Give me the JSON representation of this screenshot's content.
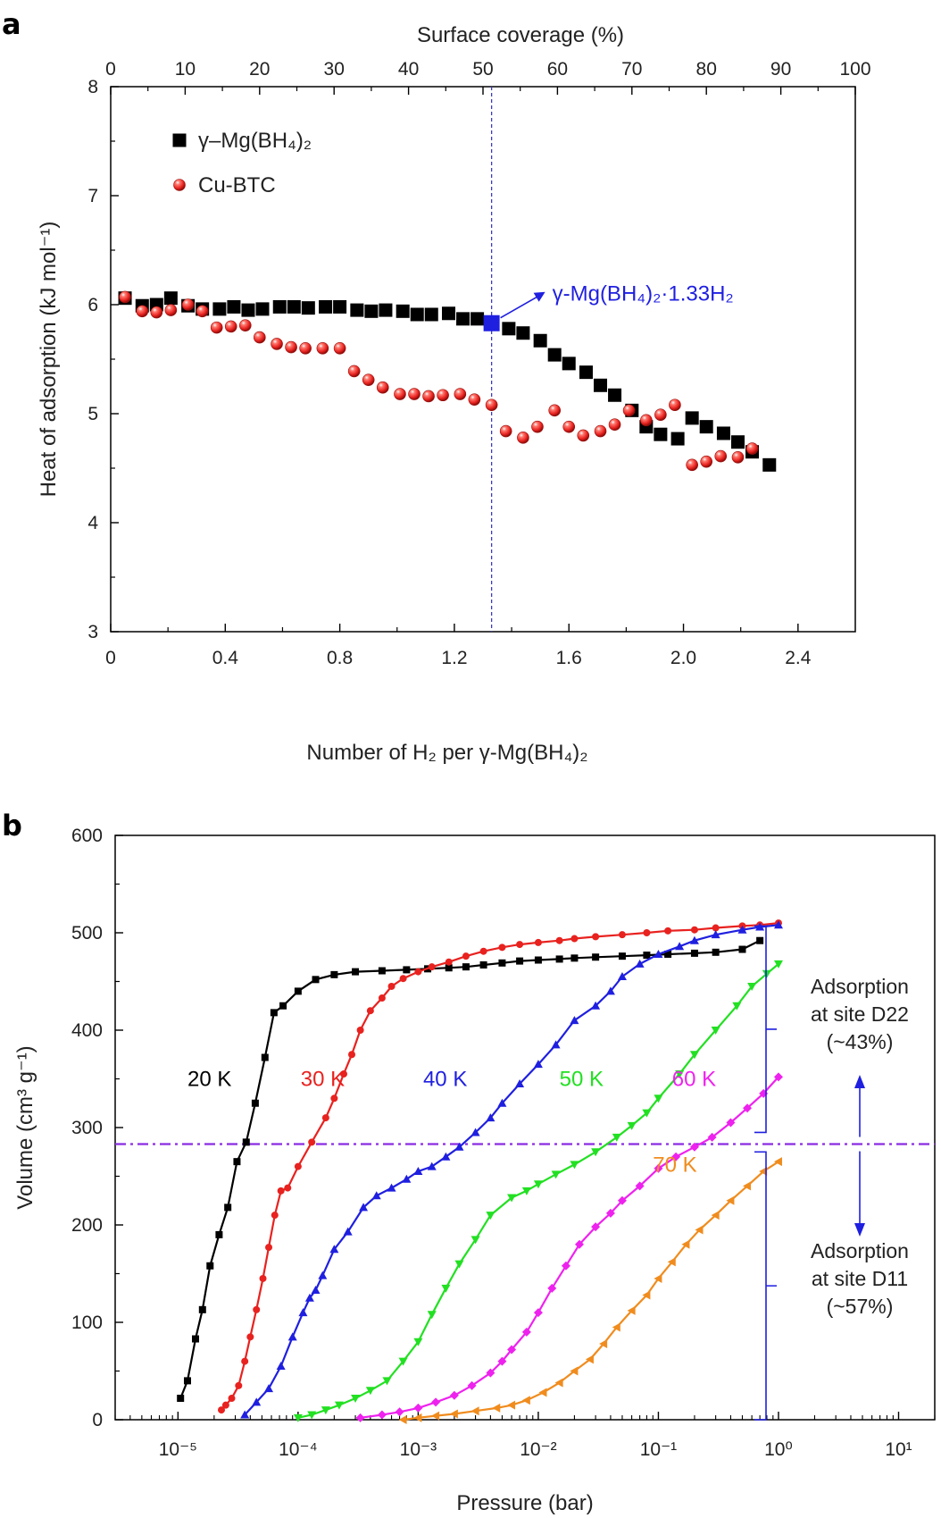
{
  "chart_data": [
    {
      "panel_label": "a",
      "type": "scatter",
      "xlabel": "Number of H₂ per γ-Mg(BH₄)₂",
      "x2label": "Surface coverage (%)",
      "ylabel": "Heat of adsorption (kJ mol⁻¹)",
      "xlim": [
        0,
        2.6
      ],
      "x2lim": [
        0,
        100
      ],
      "ylim": [
        3,
        8
      ],
      "xticks": [
        "0",
        "0.4",
        "0.8",
        "1.2",
        "1.6",
        "2.0",
        "2.4"
      ],
      "xtick_values": [
        0,
        0.4,
        0.8,
        1.2,
        1.6,
        2.0,
        2.4
      ],
      "x2ticks": [
        "0",
        "10",
        "20",
        "30",
        "40",
        "50",
        "60",
        "70",
        "80",
        "90",
        "100"
      ],
      "x2tick_values": [
        0,
        10,
        20,
        30,
        40,
        50,
        60,
        70,
        80,
        90,
        100
      ],
      "yticks": [
        "3",
        "4",
        "5",
        "6",
        "7",
        "8"
      ],
      "ytick_values": [
        3,
        4,
        5,
        6,
        7,
        8
      ],
      "legend_position": "top-left",
      "vline_x": 1.33,
      "annotation": {
        "text": "γ-Mg(BH₄)₂·1.33H₂",
        "x": 1.33,
        "y": 5.83,
        "color": "#1f1fe0"
      },
      "series": [
        {
          "name": "γ–Mg(BH₄)₂",
          "marker": "square",
          "color": "#000000",
          "x": [
            0.05,
            0.11,
            0.16,
            0.21,
            0.27,
            0.32,
            0.38,
            0.43,
            0.48,
            0.53,
            0.59,
            0.64,
            0.69,
            0.75,
            0.8,
            0.86,
            0.91,
            0.96,
            1.02,
            1.07,
            1.12,
            1.18,
            1.23,
            1.28,
            1.39,
            1.44,
            1.5,
            1.55,
            1.6,
            1.66,
            1.71,
            1.76,
            1.82,
            1.87,
            1.92,
            1.98,
            2.03,
            2.08,
            2.14,
            2.19,
            2.24,
            2.3
          ],
          "y": [
            6.06,
            5.99,
            6.0,
            6.06,
            5.99,
            5.96,
            5.96,
            5.98,
            5.95,
            5.96,
            5.98,
            5.98,
            5.97,
            5.98,
            5.98,
            5.95,
            5.94,
            5.95,
            5.94,
            5.91,
            5.91,
            5.92,
            5.87,
            5.87,
            5.78,
            5.74,
            5.67,
            5.54,
            5.46,
            5.38,
            5.26,
            5.17,
            5.03,
            4.88,
            4.81,
            4.77,
            4.96,
            4.88,
            4.82,
            4.74,
            4.65,
            4.53
          ]
        },
        {
          "name": "Cu-BTC",
          "marker": "sphere",
          "color": "#e8221f",
          "x": [
            0.05,
            0.11,
            0.16,
            0.21,
            0.27,
            0.32,
            0.37,
            0.42,
            0.47,
            0.52,
            0.58,
            0.63,
            0.68,
            0.74,
            0.8,
            0.85,
            0.9,
            0.95,
            1.01,
            1.06,
            1.11,
            1.16,
            1.22,
            1.27,
            1.33,
            1.38,
            1.44,
            1.49,
            1.55,
            1.6,
            1.65,
            1.71,
            1.76,
            1.81,
            1.87,
            1.92,
            1.97,
            2.03,
            2.08,
            2.13,
            2.19,
            2.24
          ],
          "y": [
            6.07,
            5.94,
            5.93,
            5.95,
            6.0,
            5.94,
            5.79,
            5.8,
            5.81,
            5.7,
            5.64,
            5.61,
            5.6,
            5.6,
            5.6,
            5.39,
            5.31,
            5.24,
            5.18,
            5.18,
            5.16,
            5.17,
            5.18,
            5.13,
            5.08,
            4.84,
            4.78,
            4.88,
            5.03,
            4.88,
            4.8,
            4.84,
            4.9,
            5.03,
            4.94,
            4.99,
            5.08,
            4.53,
            4.56,
            4.61,
            4.6,
            4.68
          ]
        }
      ]
    },
    {
      "panel_label": "b",
      "type": "line",
      "xscale": "log",
      "xlabel": "Pressure (bar)",
      "ylabel": "Volume (cm³ g⁻¹)",
      "xlim": [
        3e-06,
        20
      ],
      "ylim": [
        0,
        600
      ],
      "xtick_exponents": [
        -5,
        -4,
        -3,
        -2,
        -1,
        0,
        1
      ],
      "yticks": [
        "0",
        "100",
        "200",
        "300",
        "400",
        "500",
        "600"
      ],
      "ytick_values": [
        0,
        100,
        200,
        300,
        400,
        500,
        600
      ],
      "hline_y": 283,
      "brackets": [
        {
          "y_from": 295,
          "y_to": 507,
          "label_lines": [
            "Adsorption",
            "at site D22",
            "(~43%)"
          ]
        },
        {
          "y_from": 0,
          "y_to": 275,
          "label_lines": [
            "Adsorption",
            "at site D11",
            "(~57%)"
          ]
        }
      ],
      "series": [
        {
          "name": "20 K",
          "color": "#000000",
          "marker": "square",
          "label_position": {
            "x": 1.2e-05,
            "y": 350
          },
          "x": [
            1.05e-05,
            1.2e-05,
            1.4e-05,
            1.6e-05,
            1.85e-05,
            2.2e-05,
            2.6e-05,
            3.1e-05,
            3.7e-05,
            4.4e-05,
            5.3e-05,
            6.3e-05,
            7.5e-05,
            0.0001,
            0.00014,
            0.0002,
            0.0003,
            0.0005,
            0.0008,
            0.0012,
            0.0018,
            0.0025,
            0.0035,
            0.005,
            0.007,
            0.01,
            0.015,
            0.02,
            0.03,
            0.05,
            0.08,
            0.12,
            0.2,
            0.3,
            0.5,
            0.7
          ],
          "y": [
            22,
            40,
            83,
            113,
            158,
            190,
            218,
            265,
            285,
            325,
            372,
            418,
            425,
            440,
            452,
            457,
            460,
            461,
            462,
            463,
            464,
            465,
            467,
            469,
            471,
            472,
            473,
            474,
            475,
            476,
            477,
            478,
            479,
            480,
            483,
            492
          ]
        },
        {
          "name": "30 K",
          "color": "#e8221f",
          "marker": "circle",
          "label_position": {
            "x": 0.000105,
            "y": 350
          },
          "x": [
            2.3e-05,
            2.5e-05,
            2.8e-05,
            3.2e-05,
            3.6e-05,
            4e-05,
            4.5e-05,
            5.1e-05,
            5.7e-05,
            6.4e-05,
            7.2e-05,
            8.2e-05,
            0.0001,
            0.00013,
            0.00017,
            0.0002,
            0.00024,
            0.00028,
            0.00033,
            0.0004,
            0.0005,
            0.0006,
            0.00075,
            0.001,
            0.0013,
            0.0018,
            0.0025,
            0.0035,
            0.005,
            0.007,
            0.01,
            0.015,
            0.02,
            0.03,
            0.05,
            0.08,
            0.12,
            0.2,
            0.3,
            0.5,
            0.7,
            1.0
          ],
          "y": [
            10,
            15,
            22,
            35,
            60,
            85,
            113,
            145,
            177,
            210,
            235,
            238,
            260,
            285,
            310,
            330,
            355,
            375,
            400,
            420,
            433,
            445,
            453,
            460,
            465,
            470,
            476,
            481,
            485,
            488,
            490,
            492,
            494,
            496,
            498,
            500,
            502,
            503,
            505,
            507,
            508,
            510
          ]
        },
        {
          "name": "40 K",
          "color": "#1f1fe0",
          "marker": "triangle-up",
          "label_position": {
            "x": 0.0011,
            "y": 350
          },
          "x": [
            3.6e-05,
            4.5e-05,
            5.7e-05,
            7.2e-05,
            9e-05,
            0.00011,
            0.000125,
            0.00014,
            0.00016,
            0.0002,
            0.00026,
            0.00035,
            0.00045,
            0.0006,
            0.0008,
            0.001,
            0.0013,
            0.0017,
            0.0022,
            0.003,
            0.004,
            0.005,
            0.007,
            0.01,
            0.014,
            0.02,
            0.03,
            0.04,
            0.05,
            0.07,
            0.1,
            0.15,
            0.2,
            0.3,
            0.5,
            0.7,
            1.0
          ],
          "y": [
            5,
            18,
            32,
            55,
            85,
            110,
            125,
            133,
            148,
            175,
            193,
            218,
            230,
            238,
            247,
            255,
            260,
            270,
            280,
            295,
            310,
            325,
            345,
            365,
            385,
            410,
            425,
            440,
            455,
            468,
            478,
            486,
            492,
            498,
            503,
            506,
            508
          ]
        },
        {
          "name": "50 K",
          "color": "#22e022",
          "marker": "triangle-down",
          "label_position": {
            "x": 0.015,
            "y": 350
          },
          "x": [
            0.0001,
            0.00013,
            0.00017,
            0.00022,
            0.0003,
            0.0004,
            0.00055,
            0.00075,
            0.001,
            0.0013,
            0.0017,
            0.0022,
            0.003,
            0.004,
            0.006,
            0.008,
            0.01,
            0.014,
            0.02,
            0.03,
            0.045,
            0.06,
            0.08,
            0.1,
            0.15,
            0.2,
            0.3,
            0.45,
            0.6,
            0.8,
            1.0
          ],
          "y": [
            2,
            5,
            10,
            15,
            22,
            30,
            40,
            60,
            80,
            108,
            135,
            160,
            185,
            210,
            228,
            235,
            242,
            252,
            262,
            275,
            290,
            302,
            315,
            330,
            355,
            375,
            400,
            425,
            445,
            458,
            468
          ]
        },
        {
          "name": "60 K",
          "color": "#ee22ee",
          "marker": "diamond",
          "label_position": {
            "x": 0.13,
            "y": 350
          },
          "x": [
            0.00033,
            0.0005,
            0.0007,
            0.001,
            0.0014,
            0.002,
            0.0028,
            0.004,
            0.005,
            0.006,
            0.008,
            0.01,
            0.013,
            0.017,
            0.022,
            0.03,
            0.04,
            0.05,
            0.07,
            0.1,
            0.14,
            0.2,
            0.28,
            0.4,
            0.55,
            0.75,
            1.0
          ],
          "y": [
            2,
            5,
            8,
            12,
            18,
            25,
            35,
            48,
            60,
            72,
            90,
            110,
            135,
            158,
            180,
            198,
            212,
            225,
            240,
            258,
            270,
            280,
            290,
            305,
            320,
            335,
            352
          ]
        },
        {
          "name": "70 K",
          "color": "#f08c1e",
          "marker": "triangle-left",
          "label_position": {
            "x": 0.09,
            "y": 262
          },
          "x": [
            0.00075,
            0.001,
            0.0014,
            0.002,
            0.003,
            0.0045,
            0.006,
            0.008,
            0.011,
            0.015,
            0.02,
            0.027,
            0.035,
            0.045,
            0.06,
            0.08,
            0.1,
            0.13,
            0.17,
            0.22,
            0.3,
            0.4,
            0.55,
            0.75,
            1.0
          ],
          "y": [
            0,
            2,
            4,
            6,
            9,
            12,
            15,
            20,
            28,
            38,
            50,
            62,
            78,
            95,
            112,
            128,
            145,
            162,
            180,
            195,
            210,
            225,
            240,
            255,
            265
          ]
        }
      ]
    }
  ]
}
